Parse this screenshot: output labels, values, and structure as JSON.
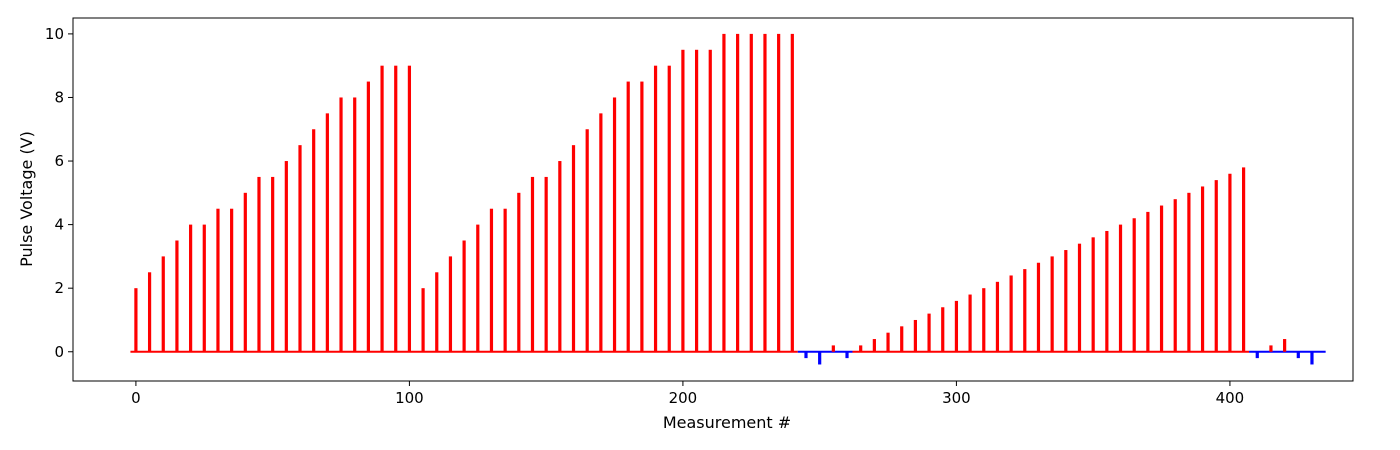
{
  "chart_data": {
    "type": "bar",
    "title": "",
    "xlabel": "Measurement #",
    "ylabel": "Pulse Voltage (V)",
    "xlim": [
      -23,
      445
    ],
    "ylim": [
      -0.92,
      10.5
    ],
    "xticks": [
      0,
      100,
      200,
      300,
      400
    ],
    "yticks": [
      0,
      2,
      4,
      6,
      8,
      10
    ],
    "grid": false,
    "colors": {
      "positive": "#ff0000",
      "negative": "#0000ff",
      "axis": "#000000"
    },
    "baseline": {
      "y": 0,
      "x_range": [
        -2,
        435
      ]
    },
    "pulses": [
      {
        "x": 0,
        "y": 2.0
      },
      {
        "x": 5,
        "y": 2.5
      },
      {
        "x": 10,
        "y": 3.0
      },
      {
        "x": 15,
        "y": 3.5
      },
      {
        "x": 20,
        "y": 4.0
      },
      {
        "x": 25,
        "y": 4.0
      },
      {
        "x": 30,
        "y": 4.5
      },
      {
        "x": 35,
        "y": 4.5
      },
      {
        "x": 40,
        "y": 5.0
      },
      {
        "x": 45,
        "y": 5.5
      },
      {
        "x": 50,
        "y": 5.5
      },
      {
        "x": 55,
        "y": 6.0
      },
      {
        "x": 60,
        "y": 6.5
      },
      {
        "x": 65,
        "y": 7.0
      },
      {
        "x": 70,
        "y": 7.5
      },
      {
        "x": 75,
        "y": 8.0
      },
      {
        "x": 80,
        "y": 8.0
      },
      {
        "x": 85,
        "y": 8.5
      },
      {
        "x": 90,
        "y": 9.0
      },
      {
        "x": 95,
        "y": 9.0
      },
      {
        "x": 100,
        "y": 9.0
      },
      {
        "x": 105,
        "y": 2.0
      },
      {
        "x": 110,
        "y": 2.5
      },
      {
        "x": 115,
        "y": 3.0
      },
      {
        "x": 120,
        "y": 3.5
      },
      {
        "x": 125,
        "y": 4.0
      },
      {
        "x": 130,
        "y": 4.5
      },
      {
        "x": 135,
        "y": 4.5
      },
      {
        "x": 140,
        "y": 5.0
      },
      {
        "x": 145,
        "y": 5.5
      },
      {
        "x": 150,
        "y": 5.5
      },
      {
        "x": 155,
        "y": 6.0
      },
      {
        "x": 160,
        "y": 6.5
      },
      {
        "x": 165,
        "y": 7.0
      },
      {
        "x": 170,
        "y": 7.5
      },
      {
        "x": 175,
        "y": 8.0
      },
      {
        "x": 180,
        "y": 8.5
      },
      {
        "x": 185,
        "y": 8.5
      },
      {
        "x": 190,
        "y": 9.0
      },
      {
        "x": 195,
        "y": 9.0
      },
      {
        "x": 200,
        "y": 9.5
      },
      {
        "x": 205,
        "y": 9.5
      },
      {
        "x": 210,
        "y": 9.5
      },
      {
        "x": 215,
        "y": 10.0
      },
      {
        "x": 220,
        "y": 10.0
      },
      {
        "x": 225,
        "y": 10.0
      },
      {
        "x": 230,
        "y": 10.0
      },
      {
        "x": 235,
        "y": 10.0
      },
      {
        "x": 240,
        "y": 10.0
      },
      {
        "x": 245,
        "y": -0.2
      },
      {
        "x": 250,
        "y": -0.4
      },
      {
        "x": 255,
        "y": 0.2
      },
      {
        "x": 260,
        "y": -0.2
      },
      {
        "x": 265,
        "y": 0.2
      },
      {
        "x": 270,
        "y": 0.4
      },
      {
        "x": 275,
        "y": 0.6
      },
      {
        "x": 280,
        "y": 0.8
      },
      {
        "x": 285,
        "y": 1.0
      },
      {
        "x": 290,
        "y": 1.2
      },
      {
        "x": 295,
        "y": 1.4
      },
      {
        "x": 300,
        "y": 1.6
      },
      {
        "x": 305,
        "y": 1.8
      },
      {
        "x": 310,
        "y": 2.0
      },
      {
        "x": 315,
        "y": 2.2
      },
      {
        "x": 320,
        "y": 2.4
      },
      {
        "x": 325,
        "y": 2.6
      },
      {
        "x": 330,
        "y": 2.8
      },
      {
        "x": 335,
        "y": 3.0
      },
      {
        "x": 340,
        "y": 3.2
      },
      {
        "x": 345,
        "y": 3.4
      },
      {
        "x": 350,
        "y": 3.6
      },
      {
        "x": 355,
        "y": 3.8
      },
      {
        "x": 360,
        "y": 4.0
      },
      {
        "x": 365,
        "y": 4.2
      },
      {
        "x": 370,
        "y": 4.4
      },
      {
        "x": 375,
        "y": 4.6
      },
      {
        "x": 380,
        "y": 4.8
      },
      {
        "x": 385,
        "y": 5.0
      },
      {
        "x": 390,
        "y": 5.2
      },
      {
        "x": 395,
        "y": 5.4
      },
      {
        "x": 400,
        "y": 5.6
      },
      {
        "x": 405,
        "y": 5.8
      },
      {
        "x": 410,
        "y": -0.2
      },
      {
        "x": 415,
        "y": 0.2
      },
      {
        "x": 420,
        "y": 0.4
      },
      {
        "x": 425,
        "y": -0.2
      },
      {
        "x": 430,
        "y": -0.4
      }
    ]
  }
}
